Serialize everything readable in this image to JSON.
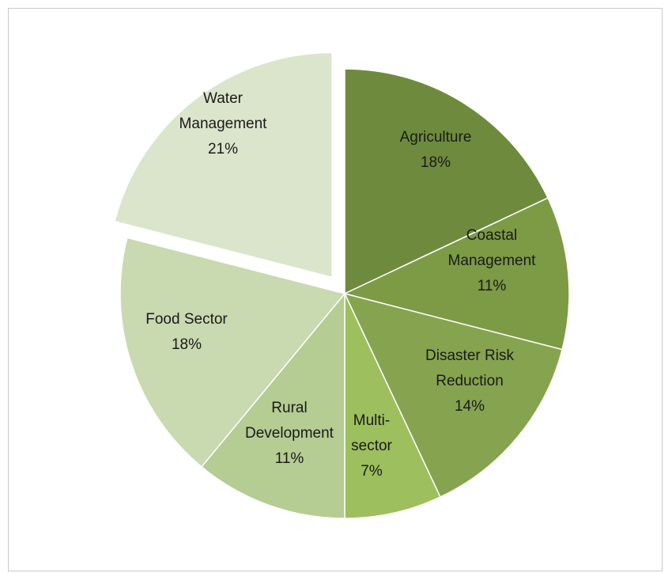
{
  "chart_data": {
    "type": "pie",
    "title": "",
    "slices": [
      {
        "name": "Agriculture",
        "value": 18,
        "label": "18%",
        "color": "#6e8b3d",
        "exploded": false
      },
      {
        "name": "Coastal Management",
        "value": 11,
        "label": "11%",
        "color": "#7d9a45",
        "exploded": false
      },
      {
        "name": "Disaster Risk Reduction",
        "value": 14,
        "label": "14%",
        "color": "#86a450",
        "exploded": false
      },
      {
        "name": "Multi-sector",
        "value": 7,
        "label": "7%",
        "color": "#9ebf5e",
        "exploded": false
      },
      {
        "name": "Rural Development",
        "value": 11,
        "label": "11%",
        "color": "#b5cc92",
        "exploded": false
      },
      {
        "name": "Food Sector",
        "value": 18,
        "label": "18%",
        "color": "#c9d9b0",
        "exploded": false
      },
      {
        "name": "Water Management",
        "value": 21,
        "label": "21%",
        "color": "#dbe5cc",
        "exploded": true
      }
    ],
    "legend": "none"
  }
}
